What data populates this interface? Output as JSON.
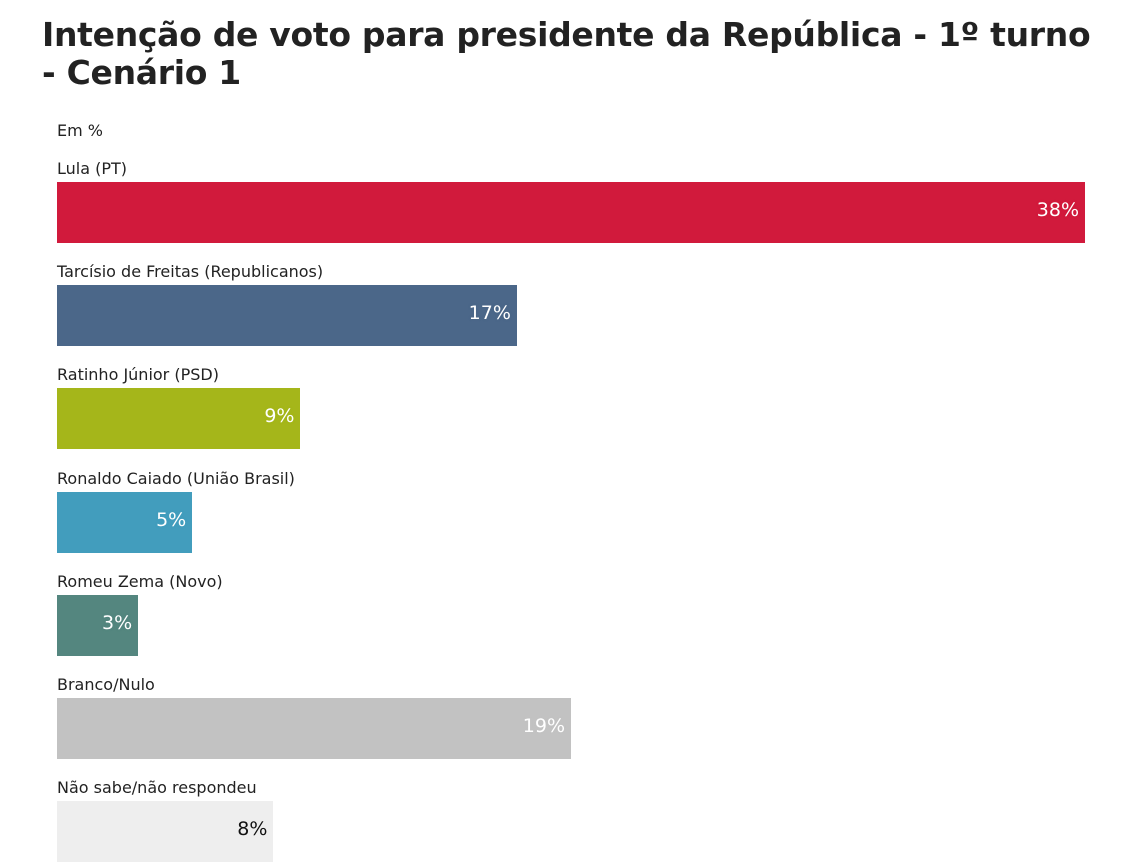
{
  "chart_data": {
    "type": "bar",
    "orientation": "horizontal",
    "title": "Intenção de voto para presidente da República - 1º turno - Cenário 1",
    "subtitle": "Em %",
    "xlabel": "",
    "ylabel": "",
    "xlim": [
      0,
      38
    ],
    "grid": false,
    "categories": [
      "Lula (PT)",
      "Tarcísio de Freitas (Republicanos)",
      "Ratinho Júnior (PSD)",
      "Ronaldo Caiado (União Brasil)",
      "Romeu Zema (Novo)",
      "Branco/Nulo",
      "Não sabe/não respondeu"
    ],
    "values": [
      38,
      17,
      9,
      5,
      3,
      19,
      8
    ],
    "value_labels": [
      "38%",
      "17%",
      "9%",
      "5%",
      "3%",
      "19%",
      "8%"
    ],
    "colors": [
      "#d11a3c",
      "#4b6789",
      "#a5b61a",
      "#429dbd",
      "#54867f",
      "#c2c2c2",
      "#eeeeee"
    ],
    "label_colors": [
      "#ffffff",
      "#ffffff",
      "#ffffff",
      "#ffffff",
      "#ffffff",
      "#ffffff",
      "#111111"
    ]
  }
}
